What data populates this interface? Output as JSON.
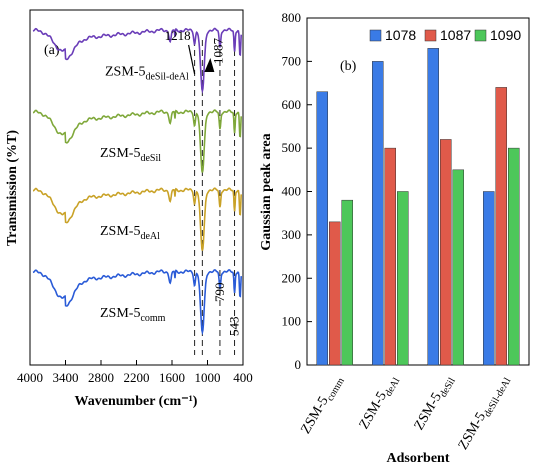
{
  "chart_data": [
    {
      "panel": "(a)",
      "type": "line",
      "title": "",
      "xlabel": "Wavenumber (cm⁻¹)",
      "ylabel": "Transmission (%T)",
      "xlim": [
        4000,
        400
      ],
      "xticks": [
        "4000",
        "3400",
        "2800",
        "2200",
        "1600",
        "1000",
        "400"
      ],
      "xtick_values": [
        4000,
        3400,
        2800,
        2200,
        1600,
        1000,
        400
      ],
      "y_tick_labels": false,
      "peak_annotations": [
        {
          "label": "1218",
          "x": 1218
        },
        {
          "label": "1087",
          "x": 1087
        },
        {
          "label": "790",
          "x": 790
        },
        {
          "label": "543",
          "x": 543
        }
      ],
      "dashed_lines_x": [
        1218,
        1087,
        790,
        543
      ],
      "series": [
        {
          "main": "ZSM-5",
          "sub": "deSil-deAl",
          "color": "#6a3db8",
          "offset": 0.83
        },
        {
          "main": "ZSM-5",
          "sub": "deSil",
          "color": "#7fa83a",
          "offset": 0.6
        },
        {
          "main": "ZSM-5",
          "sub": "deAl",
          "color": "#c9a227",
          "offset": 0.38
        },
        {
          "main": "ZSM-5",
          "sub": "comm",
          "color": "#2a5bd7",
          "offset": 0.15
        }
      ]
    },
    {
      "panel": "(b)",
      "type": "bar",
      "title": "",
      "xlabel": "Adsorbent",
      "ylabel": "Gaussian peak area",
      "ylim": [
        0,
        800
      ],
      "yticks": [
        "0",
        "100",
        "200",
        "300",
        "400",
        "500",
        "600",
        "700",
        "800"
      ],
      "categories": [
        {
          "main": "ZSM-5",
          "sub": "comm"
        },
        {
          "main": "ZSM-5",
          "sub": "deAl"
        },
        {
          "main": "ZSM-5",
          "sub": "deSil"
        },
        {
          "main": "ZSM-5",
          "sub": "deSil-deAl"
        }
      ],
      "legend_position": "top-right",
      "series": [
        {
          "name": "1078",
          "color": "#3a7be6",
          "values": [
            630,
            700,
            730,
            400
          ]
        },
        {
          "name": "1087",
          "color": "#e05a4a",
          "values": [
            330,
            500,
            520,
            640
          ]
        },
        {
          "name": "1090",
          "color": "#4dc75a",
          "values": [
            380,
            400,
            450,
            500
          ]
        }
      ]
    }
  ]
}
